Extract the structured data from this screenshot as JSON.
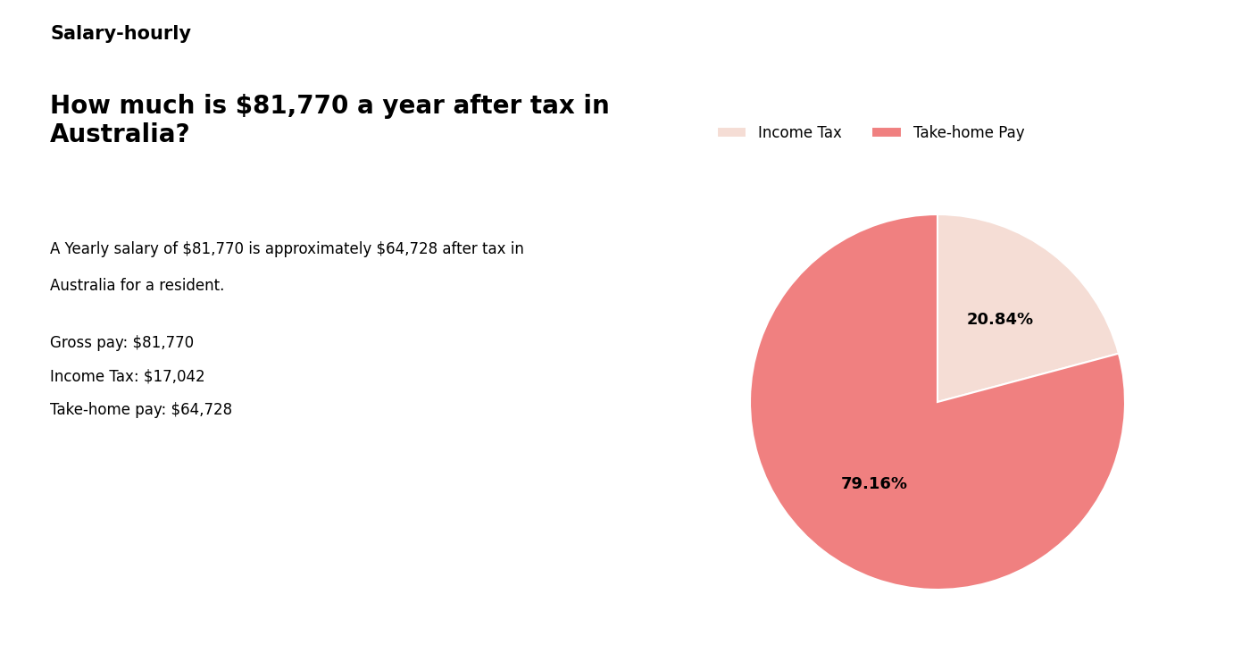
{
  "chart_data": {
    "type": "pie",
    "title": "How much is $81,770 a year after tax in Australia?",
    "annotations": [
      "Salary-hourly",
      "A Yearly salary of $81,770 is approximately $64,728 after tax in",
      "Australia for a resident.",
      "Gross pay: $81,770",
      "Income Tax: $17,042",
      "Take-home pay: $64,728"
    ],
    "categories": [
      "Income Tax",
      "Take-home Pay"
    ],
    "values": [
      20.84,
      79.16
    ],
    "value_labels": [
      "20.84%",
      "79.16%"
    ],
    "data_labels": true,
    "colors": [
      "#f5ddd5",
      "#f08080"
    ],
    "legend": "upper left"
  }
}
